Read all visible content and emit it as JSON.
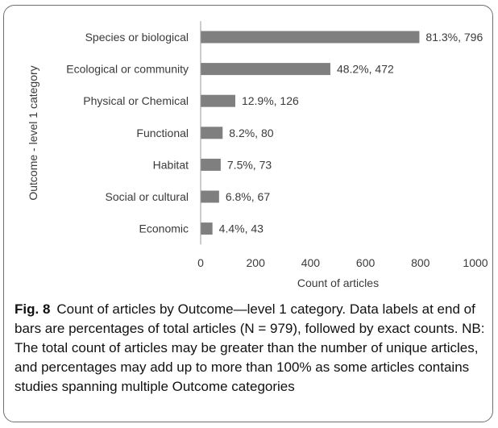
{
  "chart_data": {
    "type": "bar",
    "orientation": "horizontal",
    "categories": [
      "Species or biological",
      "Ecological or community",
      "Physical or Chemical",
      "Functional",
      "Habitat",
      "Social or cultural",
      "Economic"
    ],
    "values": [
      796,
      472,
      126,
      80,
      73,
      67,
      43
    ],
    "data_labels": [
      "81.3%, 796",
      "48.2%, 472",
      "12.9%, 126",
      "8.2%, 80",
      "7.5%, 73",
      "6.8%, 67",
      "4.4%, 43"
    ],
    "xlabel": "Count of articles",
    "ylabel": "Outcome - level 1 category",
    "xlim": [
      0,
      1000
    ],
    "xticks": [
      0,
      200,
      400,
      600,
      800,
      1000
    ],
    "bar_color": "#7f7f7f",
    "grid": false
  },
  "caption": {
    "label": "Fig. 8",
    "text": "Count of articles by Outcome—level 1 category. Data labels at end of bars are percentages of total articles (N = 979), followed by exact counts. NB: The total count of articles may be greater than the number of unique articles, and percentages may add up to more than 100% as some articles contains studies spanning multiple Outcome categories"
  }
}
